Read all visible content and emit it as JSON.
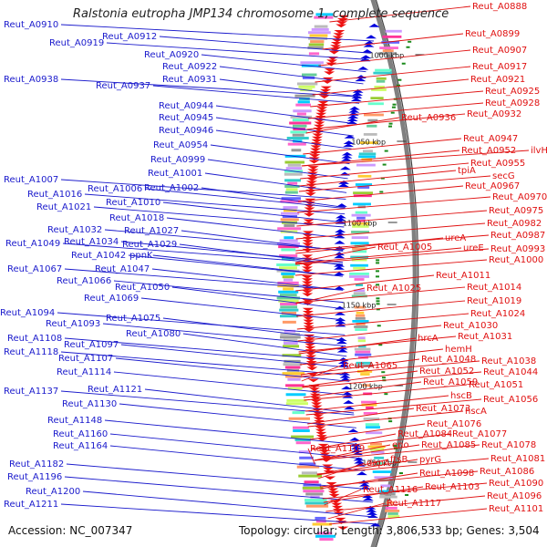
{
  "title": "Ralstonia eutropha JMP134 chromosome 1, complete sequence",
  "footer": {
    "accession_label": "Accession:",
    "accession": "NC_007347",
    "topology_label": "Topology:",
    "topology": "circular",
    "length_label": "Length:",
    "length": "3,806,533 bp",
    "genes_label": "Genes:",
    "genes": "3,504"
  },
  "colors": {
    "left_label": "#1a1acc",
    "right_label": "#e01010",
    "forward_gene": "#0000dd",
    "reverse_gene": "#ee1111",
    "backbone": "#808080",
    "tick": "#1a8a1a"
  },
  "scale_labels": [
    {
      "text": "1000 kbp",
      "bp": 1000
    },
    {
      "text": "1050 kbp",
      "bp": 1050
    },
    {
      "text": "1100 kbp",
      "bp": 1100
    },
    {
      "text": "1150 kbp",
      "bp": 1150
    },
    {
      "text": "1200 kbp",
      "bp": 1200
    },
    {
      "text": "1250 kbp",
      "bp": 1250
    }
  ],
  "left_labels": [
    "Reut_A0910",
    "Reut_A0912",
    "Reut_A0919",
    "Reut_A0920",
    "Reut_A0922",
    "Reut_A0931",
    "Reut_A0938",
    "Reut_A0937",
    "Reut_A0944",
    "Reut_A0945",
    "Reut_A0946",
    "Reut_A0954",
    "Reut_A0999",
    "Reut_A1001",
    "Reut_A1007",
    "Reut_A1006",
    "Reut_A1002",
    "Reut_A1016",
    "Reut_A1010",
    "Reut_A1021",
    "Reut_A1018",
    "Reut_A1032",
    "Reut_A1027",
    "Reut_A1049",
    "Reut_A1034",
    "Reut_A1029",
    "Reut_A1042",
    "ppnK",
    "Reut_A1067",
    "Reut_A1047",
    "Reut_A1066",
    "Reut_A1050",
    "Reut_A1069",
    "Reut_A1094",
    "Reut_A1075",
    "Reut_A1093",
    "Reut_A1080",
    "Reut_A1108",
    "Reut_A1097",
    "Reut_A1118",
    "Reut_A1107",
    "Reut_A1114",
    "Reut_A1137",
    "Reut_A1121",
    "Reut_A1130",
    "Reut_A1148",
    "Reut_A1160",
    "Reut_A1164",
    "Reut_A1182",
    "Reut_A1196",
    "Reut_A1200",
    "Reut_A1211"
  ],
  "right_labels": [
    "Reut_A0888",
    "Reut_A0899",
    "Reut_A0907",
    "Reut_A0917",
    "Reut_A0921",
    "Reut_A0925",
    "Reut_A0928",
    "Reut_A0936",
    "Reut_A0932",
    "Reut_A0947",
    "Reut_A0952",
    "ilvH",
    "Reut_A0955",
    "tpiA",
    "secG",
    "Reut_A0967",
    "Reut_A0970",
    "Reut_A0975",
    "Reut_A0982",
    "Reut_A0987",
    "ureA",
    "Reut_A1005",
    "ureE",
    "Reut_A0993",
    "Reut_A1000",
    "Reut_A1011",
    "Reut_A1025",
    "Reut_A1014",
    "Reut_A1019",
    "Reut_A1024",
    "Reut_A1030",
    "hrcA",
    "Reut_A1031",
    "hemH",
    "Reut_A1048",
    "Reut_A1038",
    "Reut_A1065",
    "Reut_A1052",
    "Reut_A1044",
    "Reut_A1059",
    "Reut_A1051",
    "hscB",
    "Reut_A1056",
    "Reut_A1073",
    "hscA",
    "Reut_A1076",
    "Reut_A1084",
    "Reut_A1077",
    "eno",
    "Reut_A1085",
    "Reut_A1078",
    "ftsB",
    "pyrG",
    "Reut_A1081",
    "Reut_A1109",
    "Reut_A1098",
    "Reut_A1086",
    "dapA",
    "Reut_A1103",
    "Reut_A1090",
    "Reut_A1116",
    "Reut_A1096",
    "Reut_A1117",
    "Reut_A1101"
  ]
}
